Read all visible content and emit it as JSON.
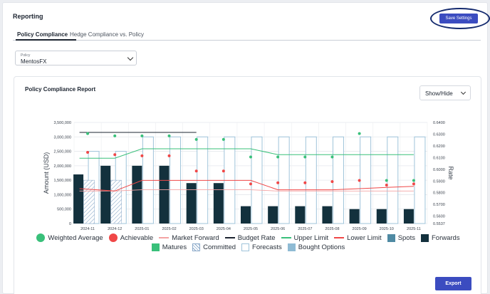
{
  "header": {
    "title": "Reporting",
    "save_label": "Save Settings"
  },
  "tabs": [
    {
      "label": "Policy Compliance",
      "active": true
    },
    {
      "label": "Hedge Compliance vs. Policy",
      "active": false
    }
  ],
  "policy_select": {
    "label": "Policy",
    "value": "MentosFX"
  },
  "report": {
    "title": "Policy Compliance Report",
    "show_hide_label": "Show/Hide",
    "export_label": "Export"
  },
  "colors": {
    "accent": "#3b4cc0",
    "weighted_average": "#39c07a",
    "achievable": "#f04747",
    "market_forward": "#f4a3a3",
    "budget_rate": "#1c2430",
    "upper_limit": "#39c07a",
    "lower_limit": "#f04747",
    "spots": "#4f8aa3",
    "forwards": "#13313d",
    "matures": "#39c07a",
    "committed": "#8aa9c9",
    "forecasts": "#9fc4da",
    "bought_options": "#8fbbd4"
  },
  "chart_data": {
    "type": "bar",
    "categories": [
      "2024-11",
      "2024-12",
      "2025-01",
      "2025-02",
      "2025-03",
      "2025-04",
      "2025-05",
      "2025-06",
      "2025-07",
      "2025-08",
      "2025-09",
      "2025-10",
      "2025-11"
    ],
    "y_left": {
      "label": "Amount (USD)",
      "min": 0,
      "max": 3500000,
      "ticks": [
        "0",
        "500,000",
        "1,000,000",
        "1,500,000",
        "2,000,000",
        "2,500,000",
        "3,000,000",
        "3,500,000"
      ]
    },
    "y_right": {
      "label": "Rate",
      "min": 0.5537,
      "max": 0.64,
      "ticks": [
        "0.5537",
        "0.5600",
        "0.5700",
        "0.5800",
        "0.5900",
        "0.6000",
        "0.6100",
        "0.6200",
        "0.6300",
        "0.6400"
      ]
    },
    "series": [
      {
        "name": "Forwards",
        "values": [
          1700000,
          2000000,
          2000000,
          2000000,
          1400000,
          1400000,
          600000,
          600000,
          600000,
          600000,
          500000,
          500000,
          500000
        ]
      },
      {
        "name": "Committed",
        "values": [
          1500000,
          1500000,
          0,
          0,
          0,
          0,
          0,
          0,
          0,
          0,
          0,
          0,
          0
        ]
      },
      {
        "name": "Forecasts",
        "values": [
          2500000,
          2500000,
          3000000,
          3000000,
          3000000,
          3000000,
          3000000,
          3000000,
          3000000,
          3000000,
          3000000,
          3000000,
          3000000
        ]
      },
      {
        "name": "Weighted Average",
        "values": [
          0.6305,
          0.6285,
          0.6285,
          0.6285,
          0.6255,
          0.6255,
          0.6105,
          0.6105,
          0.6105,
          0.6105,
          0.6305,
          0.5905,
          0.5905
        ]
      },
      {
        "name": "Achievable",
        "values": [
          0.6145,
          0.6125,
          0.6115,
          0.6115,
          0.5985,
          0.5985,
          0.5875,
          0.5885,
          0.5885,
          0.5895,
          0.5905,
          0.5865,
          0.5875
        ]
      },
      {
        "name": "Market Forward",
        "values": [
          0.5815,
          0.5815,
          0.5825,
          0.5825,
          0.5825,
          0.5825,
          0.5825,
          0.5815,
          0.5815,
          0.5815,
          0.5815,
          0.5815,
          0.5815
        ]
      },
      {
        "name": "Budget Rate",
        "values": [
          0.6315,
          0.6315,
          0.6315,
          0.6315,
          0.6315,
          null,
          null,
          null,
          null,
          null,
          null,
          null,
          null
        ]
      },
      {
        "name": "Upper Limit",
        "values": [
          0.6095,
          0.6095,
          0.6175,
          0.6175,
          0.6175,
          0.6175,
          0.6175,
          0.6125,
          0.6125,
          0.6125,
          0.6125,
          0.6125,
          0.6125
        ]
      },
      {
        "name": "Lower Limit",
        "values": [
          0.5835,
          0.5815,
          0.5905,
          0.5905,
          0.5905,
          0.5905,
          0.5905,
          0.5825,
          0.5825,
          0.5825,
          0.5835,
          0.5845,
          0.5855
        ]
      }
    ],
    "legend_row1": [
      "Weighted Average",
      "Achievable",
      "Market Forward",
      "Budget Rate",
      "Upper Limit",
      "Lower Limit",
      "Spots",
      "Forwards"
    ],
    "legend_row2": [
      "Matures",
      "Committed",
      "Forecasts",
      "Bought Options"
    ]
  }
}
